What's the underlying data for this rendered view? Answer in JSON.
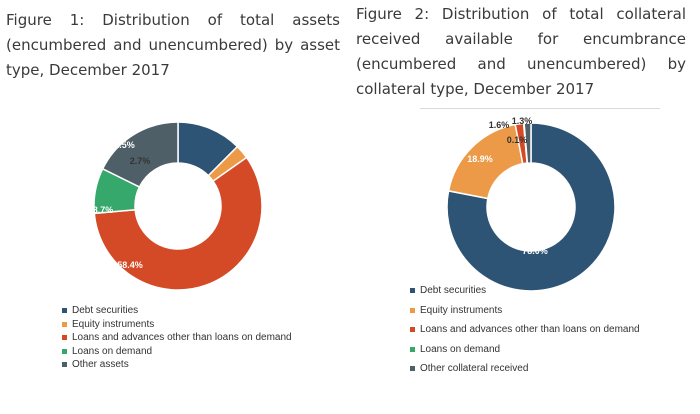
{
  "figure1": {
    "title": "Figure 1: Distribution of total assets (encumbered and unencumbered) by asset type, December 2017"
  },
  "figure2": {
    "title": "Figure 2: Distribution of total collateral received available for encumbrance (encumbered and unencumbered) by collateral type, December 2017"
  },
  "chart_data": [
    {
      "type": "pie",
      "donut": true,
      "title": "Figure 1: Distribution of total assets (encumbered and unencumbered) by asset type, December 2017",
      "categories": [
        "Debt securities",
        "Equity instruments",
        "Loans and advances other than loans on demand",
        "Loans on demand",
        "Other assets"
      ],
      "values": [
        12.5,
        2.7,
        58.4,
        8.7,
        17.7
      ],
      "labels": [
        "12.5%",
        "2.7%",
        "58.4%",
        "8.7%",
        "17.7%"
      ],
      "colors": [
        "#2e5475",
        "#ec9a47",
        "#d54a26",
        "#37a86b",
        "#4f5f68"
      ],
      "legend_position": "bottom"
    },
    {
      "type": "pie",
      "donut": true,
      "title": "Figure 2: Distribution of total collateral received available for encumbrance (encumbered and unencumbered) by collateral type, December 2017",
      "categories": [
        "Debt securities",
        "Equity instruments",
        "Loans and advances other than loans on demand",
        "Loans on demand",
        "Other collateral received"
      ],
      "values": [
        78.0,
        18.9,
        1.6,
        0.1,
        1.3
      ],
      "labels": [
        "78.0%",
        "18.9%",
        "1.6%",
        "0.1%",
        "1.3%"
      ],
      "colors": [
        "#2e5475",
        "#ec9a47",
        "#d54a26",
        "#37a86b",
        "#4f5f68"
      ],
      "legend_position": "bottom"
    }
  ]
}
